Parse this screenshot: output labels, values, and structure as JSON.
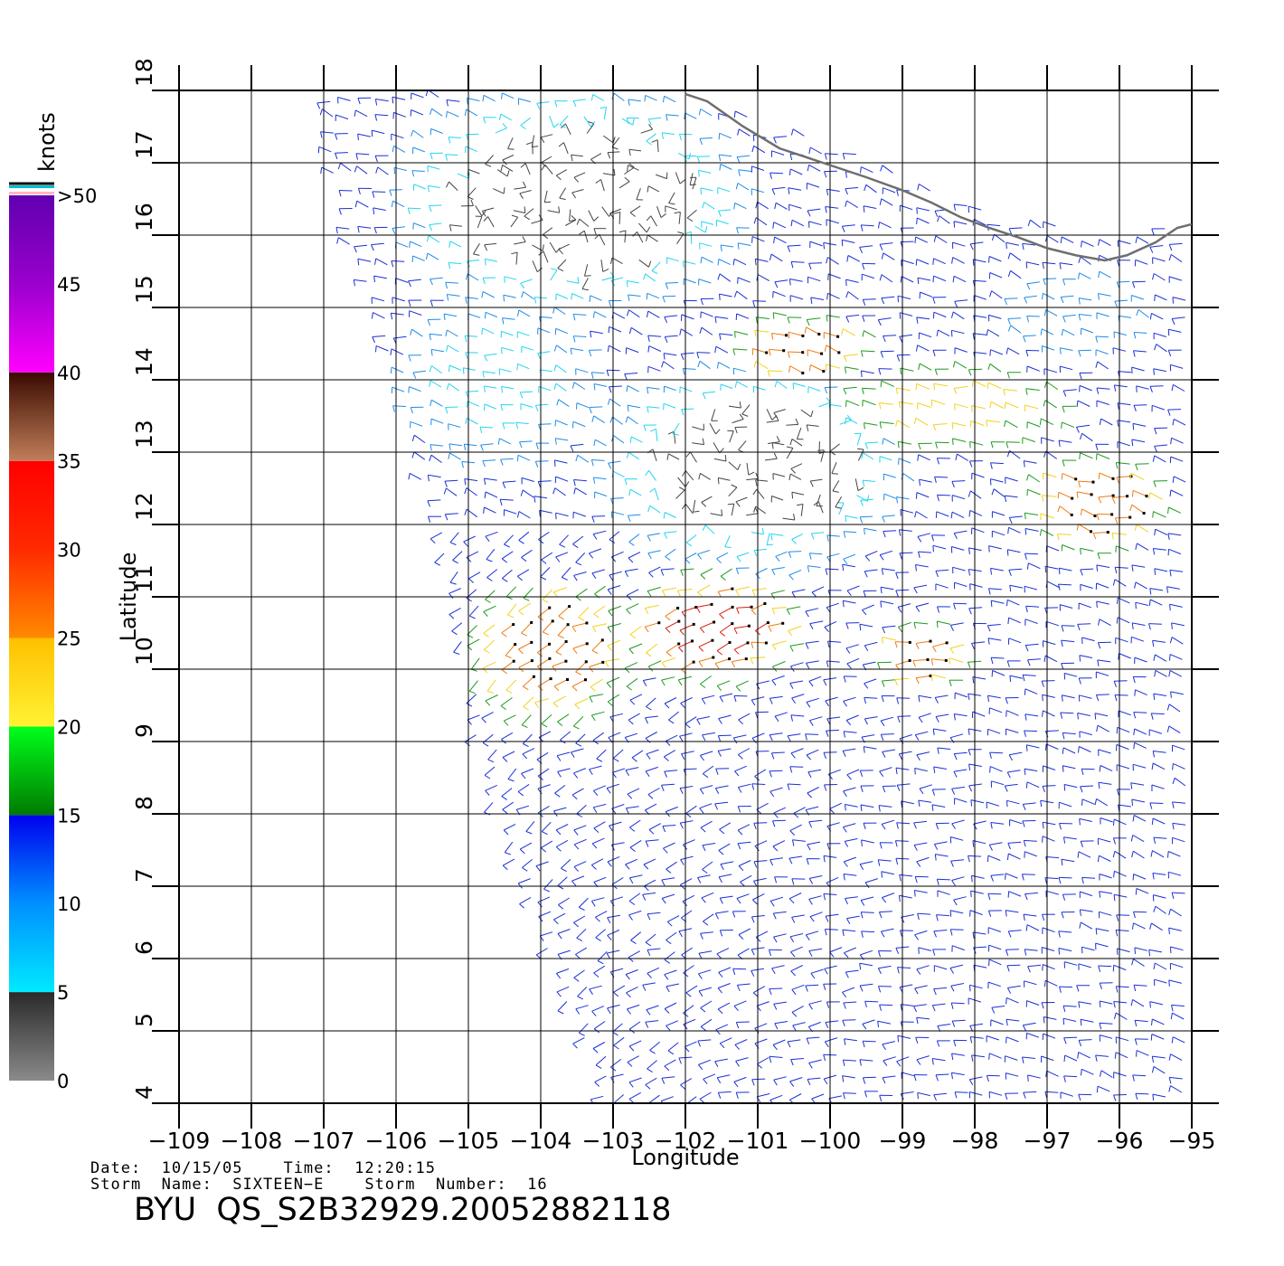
{
  "chart_data": {
    "type": "wind-barb-map",
    "xlabel": "Longitude",
    "ylabel": "Latitude",
    "xlim": [
      -109,
      -95
    ],
    "ylim": [
      4,
      18
    ],
    "x_ticks": [
      -109,
      -108,
      -107,
      -106,
      -105,
      -104,
      -103,
      -102,
      -101,
      -100,
      -99,
      -98,
      -97,
      -96,
      -95
    ],
    "x_tick_labels": [
      "−109",
      "−108",
      "−107",
      "−106",
      "−105",
      "−104",
      "−103",
      "−102",
      "−101",
      "−100",
      "−99",
      "−98",
      "−97",
      "−96",
      "−95"
    ],
    "y_ticks": [
      4,
      5,
      6,
      7,
      8,
      9,
      10,
      11,
      12,
      13,
      14,
      15,
      16,
      17,
      18
    ],
    "y_tick_labels": [
      "4",
      "5",
      "6",
      "7",
      "8",
      "9",
      "10",
      "11",
      "12",
      "13",
      "14",
      "15",
      "16",
      "17",
      "18"
    ],
    "grid": true,
    "colorbar": {
      "title": "knots",
      "labels": [
        "0",
        "5",
        "10",
        "15",
        "20",
        "25",
        "30",
        "35",
        "40",
        "45",
        ">50"
      ],
      "bins": [
        {
          "from": 0,
          "to": 5,
          "colors": [
            "#8a8a8a",
            "#2a2a2a"
          ]
        },
        {
          "from": 5,
          "to": 15,
          "colors": [
            "#00eaff",
            "#0090ff",
            "#0000ee"
          ]
        },
        {
          "from": 15,
          "to": 20,
          "colors": [
            "#007a00",
            "#00ff1a"
          ]
        },
        {
          "from": 20,
          "to": 25,
          "colors": [
            "#fff233",
            "#ffc000"
          ]
        },
        {
          "from": 25,
          "to": 35,
          "colors": [
            "#ff8a00",
            "#ff2a00",
            "#ff0000"
          ]
        },
        {
          "from": 35,
          "to": 40,
          "colors": [
            "#c27e5a",
            "#3a0a00"
          ]
        },
        {
          "from": 40,
          "to": 50,
          "colors": [
            "#ff00ff",
            "#9a00cc",
            "#6000b0"
          ]
        }
      ],
      "top_stripes": [
        "#ffb6c1",
        "#ffffff",
        "#00bcd4",
        "#000000"
      ]
    },
    "swath_polygon": [
      [
        -107,
        18
      ],
      [
        -105,
        18.1
      ],
      [
        -103,
        18.05
      ],
      [
        -101.5,
        17.8
      ],
      [
        -100,
        17.3
      ],
      [
        -98.5,
        16.6
      ],
      [
        -96.5,
        16.1
      ],
      [
        -95,
        16.1
      ],
      [
        -95,
        4
      ],
      [
        -103.1,
        4
      ],
      [
        -104.5,
        7.5
      ],
      [
        -105,
        9.5
      ],
      [
        -105.5,
        12
      ],
      [
        -106,
        14
      ],
      [
        -106.7,
        16
      ],
      [
        -107,
        17
      ]
    ],
    "coastline": [
      [
        -102,
        17.95
      ],
      [
        -101.7,
        17.85
      ],
      [
        -101.2,
        17.5
      ],
      [
        -100.7,
        17.2
      ],
      [
        -100.1,
        17.0
      ],
      [
        -99.5,
        16.8
      ],
      [
        -99.0,
        16.62
      ],
      [
        -98.6,
        16.45
      ],
      [
        -98.2,
        16.25
      ],
      [
        -97.8,
        16.1
      ],
      [
        -97.4,
        15.97
      ],
      [
        -97.0,
        15.82
      ],
      [
        -96.6,
        15.72
      ],
      [
        -96.2,
        15.65
      ],
      [
        -95.9,
        15.72
      ],
      [
        -95.5,
        15.9
      ],
      [
        -95.2,
        16.1
      ],
      [
        -95,
        16.15
      ]
    ],
    "wind_regions": [
      {
        "name": "calm-north",
        "center": [
          -103.5,
          16.5
        ],
        "radius": [
          2.8,
          1.8
        ],
        "speed": 2
      },
      {
        "name": "calm-central",
        "center": [
          -101,
          12.8
        ],
        "radius": [
          2.5,
          1.6
        ],
        "speed": 3
      },
      {
        "name": "light-north-west",
        "center": [
          -104.5,
          14.0
        ],
        "radius": [
          1.6,
          1.5
        ],
        "speed": 7
      },
      {
        "name": "jet-southwest",
        "center": [
          -103.8,
          10.3
        ],
        "radius": [
          1.4,
          1.2
        ],
        "speed": 27
      },
      {
        "name": "jet-core",
        "center": [
          -101.5,
          10.6
        ],
        "radius": [
          1.5,
          0.9
        ],
        "speed": 31
      },
      {
        "name": "belt-north",
        "center": [
          -100.3,
          14.4
        ],
        "radius": [
          1.2,
          0.6
        ],
        "speed": 27
      },
      {
        "name": "belt-northeast",
        "center": [
          -98.2,
          13.6
        ],
        "radius": [
          2.2,
          0.7
        ],
        "speed": 21
      },
      {
        "name": "belt-east",
        "center": [
          -96.2,
          12.3
        ],
        "radius": [
          1.2,
          0.8
        ],
        "speed": 28
      },
      {
        "name": "belt-east-2",
        "center": [
          -98.6,
          10.2
        ],
        "radius": [
          0.8,
          0.6
        ],
        "speed": 27
      },
      {
        "name": "light-upper-east",
        "center": [
          -96.5,
          14.9
        ],
        "radius": [
          1.5,
          0.8
        ],
        "speed": 10
      }
    ],
    "background_speed": 12,
    "wind_barb_spacing_deg": 0.25
  },
  "metadata": {
    "date_line": "Date:  10/15/05    Time:  12:20:15",
    "storm_line": "Storm  Name:  SIXTEEN−E    Storm  Number:  16",
    "file_id": "BYU  QS_S2B32929.20052882118"
  }
}
